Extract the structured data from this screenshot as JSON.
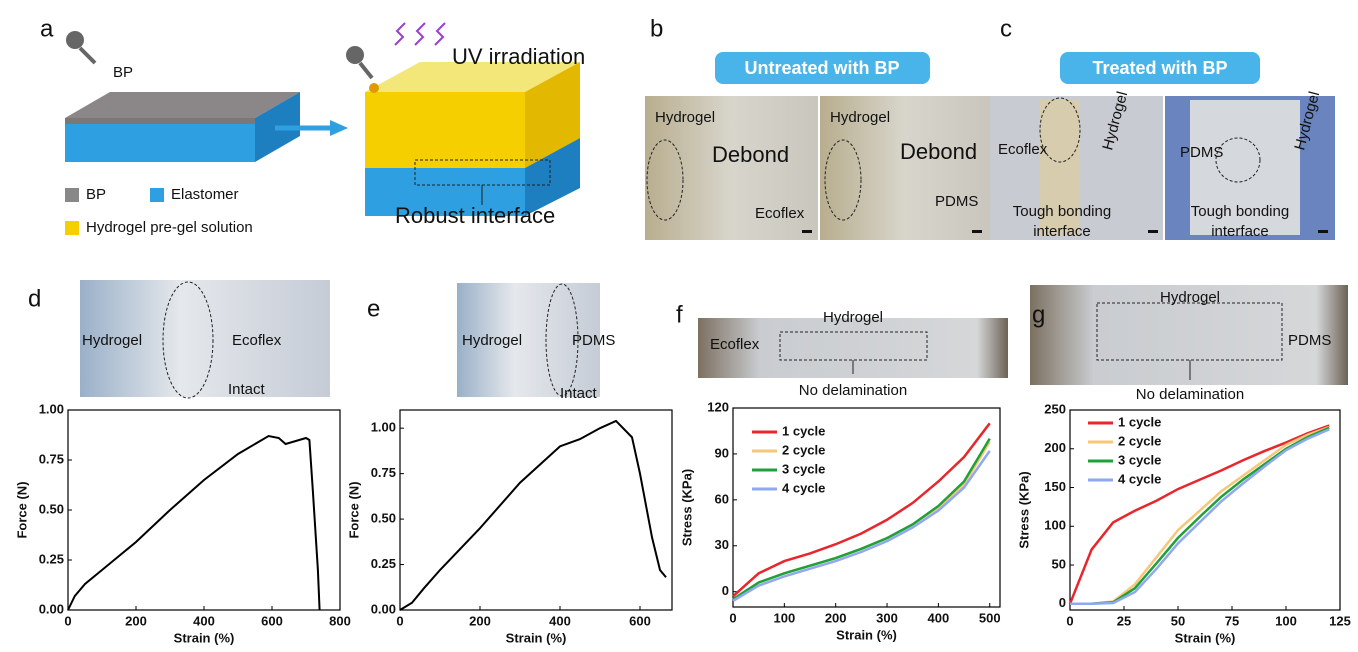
{
  "panel_labels": [
    "a",
    "b",
    "c",
    "d",
    "e",
    "f",
    "g"
  ],
  "schematic": {
    "dropper_label": "BP",
    "uv_label": "UV irradiation",
    "legend": [
      "BP",
      "Elastomer",
      "Hydrogel pre-gel solution"
    ],
    "interface_label": "Robust interface"
  },
  "photo_b": {
    "header": "Untreated with BP",
    "labels": [
      "Hydrogel",
      "Debond",
      "Ecoflex",
      "Hydrogel",
      "Debond",
      "PDMS"
    ]
  },
  "photo_c": {
    "header": "Treated with BP",
    "labels": [
      "Ecoflex",
      "Hydrogel",
      "Tough bonding",
      "interface",
      "PDMS",
      "Hydrogel",
      "Tough bonding",
      "interface"
    ]
  },
  "chart_data": [
    {
      "type": "line",
      "xlabel": "Strain (%)",
      "ylabel": "Force (N)",
      "photo_labels": [
        "Hydrogel",
        "Ecoflex",
        "Intact"
      ],
      "x": [
        0,
        20,
        50,
        100,
        150,
        200,
        300,
        400,
        500,
        590,
        620,
        640,
        700,
        710,
        720,
        735,
        740
      ],
      "series": [
        {
          "color": "#000000",
          "values": [
            0,
            0.07,
            0.13,
            0.2,
            0.27,
            0.34,
            0.5,
            0.65,
            0.78,
            0.87,
            0.86,
            0.83,
            0.86,
            0.85,
            0.6,
            0.2,
            0
          ]
        }
      ],
      "xlim": [
        0,
        800
      ],
      "xticks": [
        0,
        200,
        400,
        600,
        800
      ],
      "ylim": [
        0,
        1
      ],
      "yticks": [
        {
          "value": 0,
          "label": "0.00"
        },
        {
          "value": 0.25,
          "label": "0.25"
        },
        {
          "value": 0.5,
          "label": "0.50"
        },
        {
          "value": 0.75,
          "label": "0.75"
        },
        {
          "value": 1,
          "label": "1.00"
        }
      ]
    },
    {
      "type": "line",
      "xlabel": "Strain (%)",
      "ylabel": "Force (N)",
      "photo_labels": [
        "Hydrogel",
        "PDMS",
        "Intact"
      ],
      "x": [
        0,
        30,
        60,
        100,
        200,
        300,
        400,
        450,
        500,
        540,
        580,
        600,
        630,
        650,
        665
      ],
      "series": [
        {
          "color": "#000000",
          "values": [
            0,
            0.04,
            0.12,
            0.22,
            0.45,
            0.7,
            0.9,
            0.94,
            1,
            1.04,
            0.95,
            0.75,
            0.4,
            0.22,
            0.18
          ]
        }
      ],
      "xlim": [
        0,
        680
      ],
      "xticks": [
        0,
        200,
        400,
        600
      ],
      "ylim": [
        0,
        1.1
      ],
      "yticks": [
        {
          "value": 0,
          "label": "0.00"
        },
        {
          "value": 0.25,
          "label": "0.25"
        },
        {
          "value": 0.5,
          "label": "0.50"
        },
        {
          "value": 0.75,
          "label": "0.75"
        },
        {
          "value": 1,
          "label": "1.00"
        }
      ]
    },
    {
      "type": "line",
      "xlabel": "Strain (%)",
      "ylabel": "Stress (KPa)",
      "photo_labels": [
        "Hydrogel",
        "Ecoflex",
        "No delamination"
      ],
      "x": [
        0,
        50,
        100,
        150,
        200,
        250,
        300,
        350,
        400,
        450,
        500
      ],
      "series": [
        {
          "name": "1 cycle",
          "color": "#e8262b",
          "values": [
            -3,
            12,
            20,
            25,
            31,
            38,
            47,
            58,
            72,
            88,
            110
          ]
        },
        {
          "name": "2 cycle",
          "color": "#f5c77a",
          "values": [
            -5,
            6,
            12,
            17,
            22,
            28,
            35,
            44,
            55,
            70,
            98
          ]
        },
        {
          "name": "3 cycle",
          "color": "#1fa038",
          "values": [
            -5,
            6,
            12,
            17,
            22,
            28,
            35,
            44,
            56,
            72,
            100
          ]
        },
        {
          "name": "4 cycle",
          "color": "#8fa8f0",
          "values": [
            -6,
            4,
            10,
            15,
            20,
            26,
            33,
            42,
            53,
            68,
            92
          ]
        }
      ],
      "xlim": [
        0,
        520
      ],
      "xticks": [
        0,
        100,
        200,
        300,
        400,
        500
      ],
      "ylim": [
        -10,
        120
      ],
      "yticks": [
        0,
        30,
        60,
        90,
        120
      ]
    },
    {
      "type": "line",
      "xlabel": "Strain (%)",
      "ylabel": "Stress (KPa)",
      "photo_labels": [
        "Hydrogel",
        "PDMS",
        "No delamination"
      ],
      "x": [
        0,
        10,
        20,
        30,
        40,
        50,
        60,
        70,
        80,
        90,
        100,
        110,
        120
      ],
      "series": [
        {
          "name": "1 cycle",
          "color": "#e8262b",
          "values": [
            0,
            70,
            105,
            120,
            133,
            148,
            160,
            172,
            185,
            197,
            208,
            220,
            230
          ]
        },
        {
          "name": "2 cycle",
          "color": "#f5c77a",
          "values": [
            0,
            0,
            3,
            25,
            60,
            95,
            120,
            145,
            165,
            185,
            205,
            218,
            228
          ]
        },
        {
          "name": "3 cycle",
          "color": "#1fa038",
          "values": [
            0,
            0,
            2,
            20,
            52,
            85,
            112,
            138,
            160,
            180,
            200,
            215,
            227
          ]
        },
        {
          "name": "4 cycle",
          "color": "#8fa8f0",
          "values": [
            0,
            0,
            1,
            15,
            45,
            78,
            105,
            132,
            155,
            177,
            198,
            213,
            225
          ]
        }
      ],
      "xlim": [
        0,
        125
      ],
      "xticks": [
        0,
        25,
        50,
        75,
        100,
        125
      ],
      "ylim": [
        -8,
        250
      ],
      "yticks": [
        0,
        50,
        100,
        150,
        200,
        250
      ]
    }
  ]
}
